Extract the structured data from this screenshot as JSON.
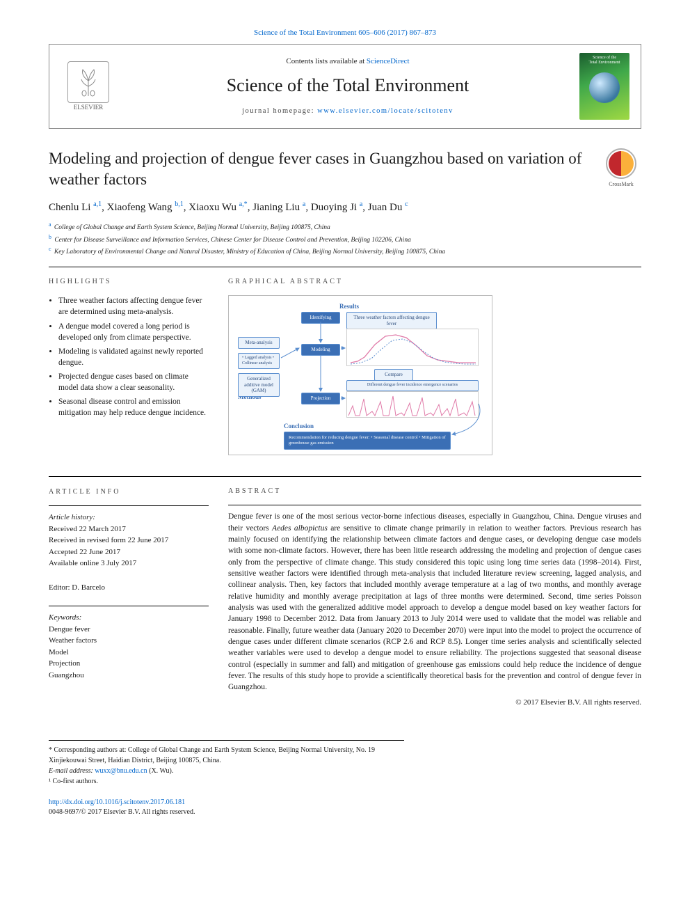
{
  "top_link": "Science of the Total Environment 605–606 (2017) 867–873",
  "header": {
    "contents_prefix": "Contents lists available at ",
    "contents_link": "ScienceDirect",
    "journal_title": "Science of the Total Environment",
    "homepage_prefix": "journal homepage: ",
    "homepage_url": "www.elsevier.com/locate/scitotenv",
    "elsevier_label": "ELSEVIER",
    "cover_top": "Science of the",
    "cover_bottom": "Total Environment"
  },
  "crossmark_label": "CrossMark",
  "title": "Modeling and projection of dengue fever cases in Guangzhou based on variation of weather factors",
  "authors_html": "Chenlu Li <sup>a,1</sup>, Xiaofeng Wang <sup>b,1</sup>, Xiaoxu Wu <sup>a,*</sup>, Jianing Liu <sup>a</sup>, Duoying Ji <sup>a</sup>, Juan Du <sup>c</sup>",
  "affiliations": [
    {
      "sup": "a",
      "text": "College of Global Change and Earth System Science, Beijing Normal University, Beijing 100875, China"
    },
    {
      "sup": "b",
      "text": "Center for Disease Surveillance and Information Services, Chinese Center for Disease Control and Prevention, Beijing 102206, China"
    },
    {
      "sup": "c",
      "text": "Key Laboratory of Environmental Change and Natural Disaster, Ministry of Education of China, Beijing Normal University, Beijing 100875, China"
    }
  ],
  "highlights": {
    "heading": "HIGHLIGHTS",
    "items": [
      "Three weather factors affecting dengue fever are determined using meta-analysis.",
      "A dengue model covered a long period is developed only from climate perspective.",
      "Modeling is validated against newly reported dengue.",
      "Projected dengue cases based on climate model data show a clear seasonality.",
      "Seasonal disease control and emission mitigation may help reduce dengue incidence."
    ]
  },
  "ga": {
    "heading": "GRAPHICAL ABSTRACT",
    "labels": {
      "results": "Results",
      "methods": "Methods",
      "conclusion": "Conclusion"
    },
    "blocks": {
      "identifying": "Identifying",
      "modeling": "Modeling",
      "projection": "Projection",
      "meta": "Meta-analysis",
      "lagged": "• Lagged analysis\n• Collinear analysis",
      "gam": "Generalized additive model (GAM)",
      "weather": "Three weather factors affecting dengue fever",
      "compare": "Compare",
      "scenario": "Different dengue fever incidence emergence scenarios",
      "recommend": "Recommendation for reducing dengue fever:\n• Seasonal disease control\n• Mitigation of greenhouse gas emission"
    },
    "chart_colors": {
      "pred_line": "#e07aa8",
      "obs_line": "#5a8ecf",
      "bg": "#ffffff",
      "border": "#cccccc"
    }
  },
  "article_info": {
    "heading": "ARTICLE INFO",
    "history_head": "Article history:",
    "history": [
      "Received 22 March 2017",
      "Received in revised form 22 June 2017",
      "Accepted 22 June 2017",
      "Available online 3 July 2017"
    ],
    "editor_label": "Editor: D. Barcelo",
    "keywords_head": "Keywords:",
    "keywords": [
      "Dengue fever",
      "Weather factors",
      "Model",
      "Projection",
      "Guangzhou"
    ]
  },
  "abstract": {
    "heading": "ABSTRACT",
    "text": "Dengue fever is one of the most serious vector-borne infectious diseases, especially in Guangzhou, China. Dengue viruses and their vectors Aedes albopictus are sensitive to climate change primarily in relation to weather factors. Previous research has mainly focused on identifying the relationship between climate factors and dengue cases, or developing dengue case models with some non-climate factors. However, there has been little research addressing the modeling and projection of dengue cases only from the perspective of climate change. This study considered this topic using long time series data (1998–2014). First, sensitive weather factors were identified through meta-analysis that included literature review screening, lagged analysis, and collinear analysis. Then, key factors that included monthly average temperature at a lag of two months, and monthly average relative humidity and monthly average precipitation at lags of three months were determined. Second, time series Poisson analysis was used with the generalized additive model approach to develop a dengue model based on key weather factors for January 1998 to December 2012. Data from January 2013 to July 2014 were used to validate that the model was reliable and reasonable. Finally, future weather data (January 2020 to December 2070) were input into the model to project the occurrence of dengue cases under different climate scenarios (RCP 2.6 and RCP 8.5). Longer time series analysis and scientifically selected weather variables were used to develop a dengue model to ensure reliability. The projections suggested that seasonal disease control (especially in summer and fall) and mitigation of greenhouse gas emissions could help reduce the incidence of dengue fever. The results of this study hope to provide a scientifically theoretical basis for the prevention and control of dengue fever in Guangzhou.",
    "italic_species": "Aedes albopictus",
    "copyright": "© 2017 Elsevier B.V. All rights reserved."
  },
  "footnotes": {
    "corresponding": "* Corresponding authors at: College of Global Change and Earth System Science, Beijing Normal University, No. 19 Xinjiekouwai Street, Haidian District, Beijing 100875, China.",
    "email_label": "E-mail address:",
    "email": "wuxx@bnu.edu.cn",
    "email_who": "(X. Wu).",
    "cofirst": "¹ Co-first authors."
  },
  "footer": {
    "doi": "http://dx.doi.org/10.1016/j.scitotenv.2017.06.181",
    "copyright": "0048-9697/© 2017 Elsevier B.V. All rights reserved."
  },
  "colors": {
    "link": "#0066cc",
    "rule": "#000000",
    "text": "#1a1a1a",
    "box_border": "#888888"
  }
}
